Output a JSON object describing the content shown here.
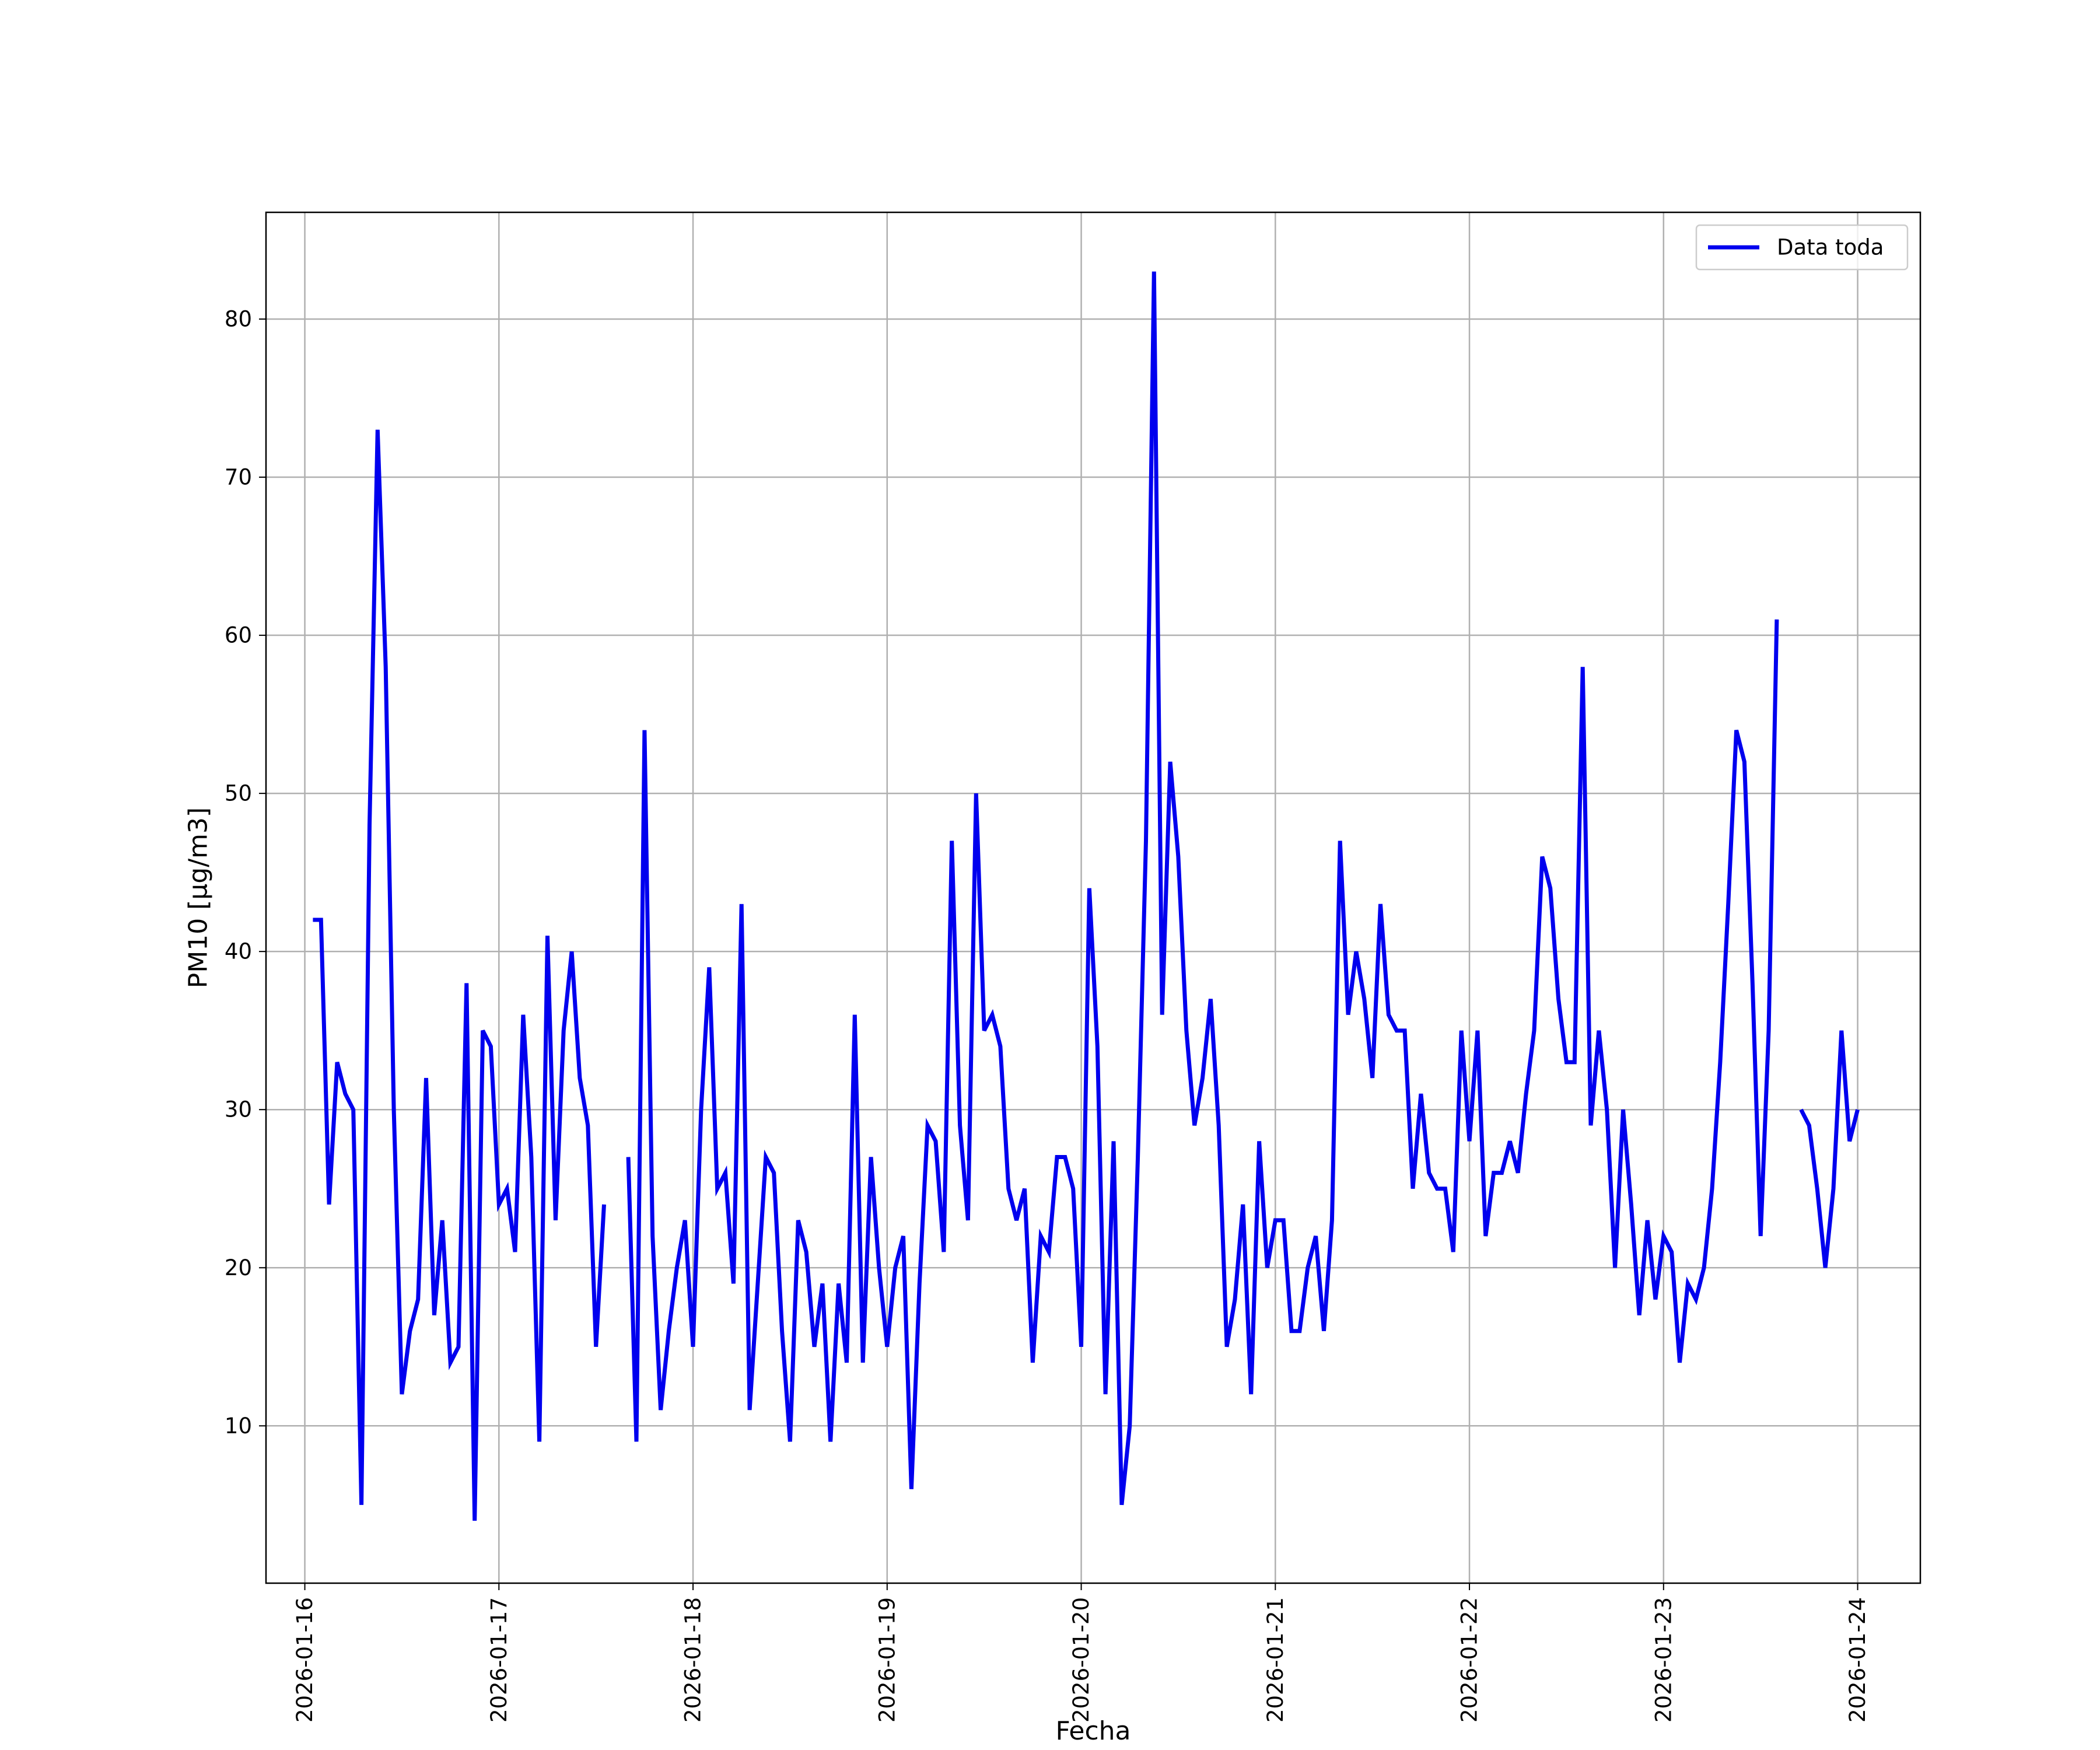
{
  "chart_data": {
    "type": "line",
    "title": "",
    "xlabel": "Fecha",
    "ylabel": "PM10 [μg/m3]",
    "x_ticks": [
      "2026-01-16",
      "2026-01-17",
      "2026-01-18",
      "2026-01-19",
      "2026-01-20",
      "2026-01-21",
      "2026-01-22",
      "2026-01-23",
      "2026-01-24"
    ],
    "y_ticks": [
      10,
      20,
      30,
      40,
      50,
      60,
      70,
      80
    ],
    "xlim": [
      "2026-01-15T19:12",
      "2026-01-24T07:45"
    ],
    "ylim": [
      0.05,
      86.75
    ],
    "grid": true,
    "legend": {
      "location": "top-right"
    },
    "colors": {
      "line": "#0000ee",
      "grid": "#b0b0b0",
      "axes": "#000000"
    },
    "series": [
      {
        "name": "Data toda",
        "points": [
          [
            "2026-01-16T01:00",
            42
          ],
          [
            "2026-01-16T02:00",
            42
          ],
          [
            "2026-01-16T03:00",
            24
          ],
          [
            "2026-01-16T04:00",
            33
          ],
          [
            "2026-01-16T05:00",
            31
          ],
          [
            "2026-01-16T06:00",
            30
          ],
          [
            "2026-01-16T07:00",
            5
          ],
          [
            "2026-01-16T08:00",
            48
          ],
          [
            "2026-01-16T09:00",
            73
          ],
          [
            "2026-01-16T10:00",
            58
          ],
          [
            "2026-01-16T11:00",
            30
          ],
          [
            "2026-01-16T12:00",
            12
          ],
          [
            "2026-01-16T13:00",
            16
          ],
          [
            "2026-01-16T14:00",
            18
          ],
          [
            "2026-01-16T15:00",
            32
          ],
          [
            "2026-01-16T16:00",
            17
          ],
          [
            "2026-01-16T17:00",
            23
          ],
          [
            "2026-01-16T18:00",
            14
          ],
          [
            "2026-01-16T19:00",
            15
          ],
          [
            "2026-01-16T20:00",
            38
          ],
          [
            "2026-01-16T21:00",
            4
          ],
          [
            "2026-01-16T22:00",
            35
          ],
          [
            "2026-01-16T23:00",
            34
          ],
          [
            "2026-01-17T00:00",
            24
          ],
          [
            "2026-01-17T01:00",
            25
          ],
          [
            "2026-01-17T02:00",
            21
          ],
          [
            "2026-01-17T03:00",
            36
          ],
          [
            "2026-01-17T04:00",
            27
          ],
          [
            "2026-01-17T05:00",
            9
          ],
          [
            "2026-01-17T06:00",
            41
          ],
          [
            "2026-01-17T07:00",
            23
          ],
          [
            "2026-01-17T08:00",
            35
          ],
          [
            "2026-01-17T09:00",
            40
          ],
          [
            "2026-01-17T10:00",
            32
          ],
          [
            "2026-01-17T11:00",
            29
          ],
          [
            "2026-01-17T12:00",
            15
          ],
          [
            "2026-01-17T13:00",
            24
          ],
          null,
          [
            "2026-01-17T16:00",
            27
          ],
          [
            "2026-01-17T17:00",
            9
          ],
          [
            "2026-01-17T18:00",
            54
          ],
          [
            "2026-01-17T19:00",
            22
          ],
          [
            "2026-01-17T20:00",
            11
          ],
          [
            "2026-01-17T21:00",
            16
          ],
          [
            "2026-01-17T22:00",
            20
          ],
          [
            "2026-01-17T23:00",
            23
          ],
          [
            "2026-01-18T00:00",
            15
          ],
          [
            "2026-01-18T01:00",
            30
          ],
          [
            "2026-01-18T02:00",
            39
          ],
          [
            "2026-01-18T03:00",
            25
          ],
          [
            "2026-01-18T04:00",
            26
          ],
          [
            "2026-01-18T05:00",
            19
          ],
          [
            "2026-01-18T06:00",
            43
          ],
          [
            "2026-01-18T07:00",
            11
          ],
          [
            "2026-01-18T08:00",
            19
          ],
          [
            "2026-01-18T09:00",
            27
          ],
          [
            "2026-01-18T10:00",
            26
          ],
          [
            "2026-01-18T11:00",
            16
          ],
          [
            "2026-01-18T12:00",
            9
          ],
          [
            "2026-01-18T13:00",
            23
          ],
          [
            "2026-01-18T14:00",
            21
          ],
          [
            "2026-01-18T15:00",
            15
          ],
          [
            "2026-01-18T16:00",
            19
          ],
          [
            "2026-01-18T17:00",
            9
          ],
          [
            "2026-01-18T18:00",
            19
          ],
          [
            "2026-01-18T19:00",
            14
          ],
          [
            "2026-01-18T20:00",
            36
          ],
          [
            "2026-01-18T21:00",
            14
          ],
          [
            "2026-01-18T22:00",
            27
          ],
          [
            "2026-01-18T23:00",
            20
          ],
          [
            "2026-01-19T00:00",
            15
          ],
          [
            "2026-01-19T01:00",
            20
          ],
          [
            "2026-01-19T02:00",
            22
          ],
          [
            "2026-01-19T03:00",
            6
          ],
          [
            "2026-01-19T04:00",
            19
          ],
          [
            "2026-01-19T05:00",
            29
          ],
          [
            "2026-01-19T06:00",
            28
          ],
          [
            "2026-01-19T07:00",
            21
          ],
          [
            "2026-01-19T08:00",
            47
          ],
          [
            "2026-01-19T09:00",
            29
          ],
          [
            "2026-01-19T10:00",
            23
          ],
          [
            "2026-01-19T11:00",
            50
          ],
          [
            "2026-01-19T12:00",
            35
          ],
          [
            "2026-01-19T13:00",
            36
          ],
          [
            "2026-01-19T14:00",
            34
          ],
          [
            "2026-01-19T15:00",
            25
          ],
          [
            "2026-01-19T16:00",
            23
          ],
          [
            "2026-01-19T17:00",
            25
          ],
          [
            "2026-01-19T18:00",
            14
          ],
          [
            "2026-01-19T19:00",
            22
          ],
          [
            "2026-01-19T20:00",
            21
          ],
          [
            "2026-01-19T21:00",
            27
          ],
          [
            "2026-01-19T22:00",
            27
          ],
          [
            "2026-01-19T23:00",
            25
          ],
          [
            "2026-01-20T00:00",
            15
          ],
          [
            "2026-01-20T01:00",
            44
          ],
          [
            "2026-01-20T02:00",
            34
          ],
          [
            "2026-01-20T03:00",
            12
          ],
          [
            "2026-01-20T04:00",
            28
          ],
          [
            "2026-01-20T05:00",
            5
          ],
          [
            "2026-01-20T06:00",
            10
          ],
          [
            "2026-01-20T07:00",
            27
          ],
          [
            "2026-01-20T08:00",
            47
          ],
          [
            "2026-01-20T09:00",
            83
          ],
          [
            "2026-01-20T10:00",
            36
          ],
          [
            "2026-01-20T11:00",
            52
          ],
          [
            "2026-01-20T12:00",
            46
          ],
          [
            "2026-01-20T13:00",
            35
          ],
          [
            "2026-01-20T14:00",
            29
          ],
          [
            "2026-01-20T15:00",
            32
          ],
          [
            "2026-01-20T16:00",
            37
          ],
          [
            "2026-01-20T17:00",
            29
          ],
          [
            "2026-01-20T18:00",
            15
          ],
          [
            "2026-01-20T19:00",
            18
          ],
          [
            "2026-01-20T20:00",
            24
          ],
          [
            "2026-01-20T21:00",
            12
          ],
          [
            "2026-01-20T22:00",
            28
          ],
          [
            "2026-01-20T23:00",
            20
          ],
          [
            "2026-01-21T00:00",
            23
          ],
          [
            "2026-01-21T01:00",
            23
          ],
          [
            "2026-01-21T02:00",
            16
          ],
          [
            "2026-01-21T03:00",
            16
          ],
          [
            "2026-01-21T04:00",
            20
          ],
          [
            "2026-01-21T05:00",
            22
          ],
          [
            "2026-01-21T06:00",
            16
          ],
          [
            "2026-01-21T07:00",
            23
          ],
          [
            "2026-01-21T08:00",
            47
          ],
          [
            "2026-01-21T09:00",
            36
          ],
          [
            "2026-01-21T10:00",
            40
          ],
          [
            "2026-01-21T11:00",
            37
          ],
          [
            "2026-01-21T12:00",
            32
          ],
          [
            "2026-01-21T13:00",
            43
          ],
          [
            "2026-01-21T14:00",
            36
          ],
          [
            "2026-01-21T15:00",
            35
          ],
          [
            "2026-01-21T16:00",
            35
          ],
          [
            "2026-01-21T17:00",
            25
          ],
          [
            "2026-01-21T18:00",
            31
          ],
          [
            "2026-01-21T19:00",
            26
          ],
          [
            "2026-01-21T20:00",
            25
          ],
          [
            "2026-01-21T21:00",
            25
          ],
          [
            "2026-01-21T22:00",
            21
          ],
          [
            "2026-01-21T23:00",
            35
          ],
          [
            "2026-01-22T00:00",
            28
          ],
          [
            "2026-01-22T01:00",
            35
          ],
          [
            "2026-01-22T02:00",
            22
          ],
          [
            "2026-01-22T03:00",
            26
          ],
          [
            "2026-01-22T04:00",
            26
          ],
          [
            "2026-01-22T05:00",
            28
          ],
          [
            "2026-01-22T06:00",
            26
          ],
          [
            "2026-01-22T07:00",
            31
          ],
          [
            "2026-01-22T08:00",
            35
          ],
          [
            "2026-01-22T09:00",
            46
          ],
          [
            "2026-01-22T10:00",
            44
          ],
          [
            "2026-01-22T11:00",
            37
          ],
          [
            "2026-01-22T12:00",
            33
          ],
          [
            "2026-01-22T13:00",
            33
          ],
          [
            "2026-01-22T14:00",
            58
          ],
          [
            "2026-01-22T15:00",
            29
          ],
          [
            "2026-01-22T16:00",
            35
          ],
          [
            "2026-01-22T17:00",
            30
          ],
          [
            "2026-01-22T18:00",
            20
          ],
          [
            "2026-01-22T19:00",
            30
          ],
          [
            "2026-01-22T20:00",
            24
          ],
          [
            "2026-01-22T21:00",
            17
          ],
          [
            "2026-01-22T22:00",
            23
          ],
          [
            "2026-01-22T23:00",
            18
          ],
          [
            "2026-01-23T00:00",
            22
          ],
          [
            "2026-01-23T01:00",
            21
          ],
          [
            "2026-01-23T02:00",
            14
          ],
          [
            "2026-01-23T03:00",
            19
          ],
          [
            "2026-01-23T04:00",
            18
          ],
          [
            "2026-01-23T05:00",
            20
          ],
          [
            "2026-01-23T06:00",
            25
          ],
          [
            "2026-01-23T07:00",
            33
          ],
          [
            "2026-01-23T08:00",
            43
          ],
          [
            "2026-01-23T09:00",
            54
          ],
          [
            "2026-01-23T10:00",
            52
          ],
          [
            "2026-01-23T11:00",
            38
          ],
          [
            "2026-01-23T12:00",
            22
          ],
          [
            "2026-01-23T13:00",
            35
          ],
          [
            "2026-01-23T14:00",
            61
          ],
          null,
          [
            "2026-01-23T17:00",
            30
          ],
          [
            "2026-01-23T18:00",
            29
          ],
          [
            "2026-01-23T19:00",
            25
          ],
          [
            "2026-01-23T20:00",
            20
          ],
          [
            "2026-01-23T21:00",
            25
          ],
          [
            "2026-01-23T22:00",
            35
          ],
          [
            "2026-01-23T23:00",
            28
          ],
          [
            "2026-01-24T00:00",
            30
          ]
        ]
      }
    ]
  }
}
